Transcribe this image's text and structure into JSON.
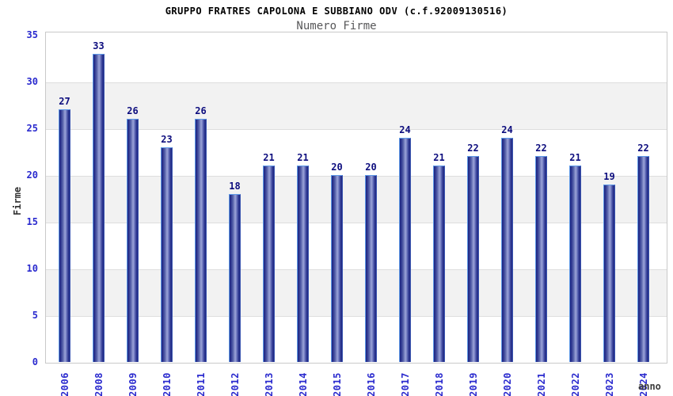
{
  "chart_data": {
    "type": "bar",
    "title": "GRUPPO FRATRES CAPOLONA E SUBBIANO ODV (c.f.92009130516)",
    "subtitle": "Numero Firme",
    "xlabel": "anno",
    "ylabel": "Firme",
    "categories": [
      "2006",
      "2008",
      "2009",
      "2010",
      "2011",
      "2012",
      "2013",
      "2014",
      "2015",
      "2016",
      "2017",
      "2018",
      "2019",
      "2020",
      "2021",
      "2022",
      "2023",
      "2024"
    ],
    "values": [
      27,
      33,
      26,
      23,
      26,
      18,
      21,
      21,
      20,
      20,
      24,
      21,
      22,
      24,
      22,
      21,
      19,
      22
    ],
    "ylim": [
      0,
      35
    ],
    "yticks": [
      0,
      5,
      10,
      15,
      20,
      25,
      30,
      35
    ],
    "grid": true,
    "band_shading": true,
    "legend": "none"
  },
  "colors": {
    "bar_dark": "#1e2680",
    "bar_mid": "#9ba4d8",
    "bar_border_light": "#5f9ae8",
    "bar_border_dark": "#3a55b0",
    "tick_label": "#2a2ace",
    "value_label": "#0d0d7e",
    "title": "#000000",
    "subtitle": "#58585a",
    "axis_title": "#333333",
    "band": "#f2f2f2",
    "gridline": "#dedede",
    "plot_border": "#c9c9c9",
    "background": "#ffffff"
  }
}
